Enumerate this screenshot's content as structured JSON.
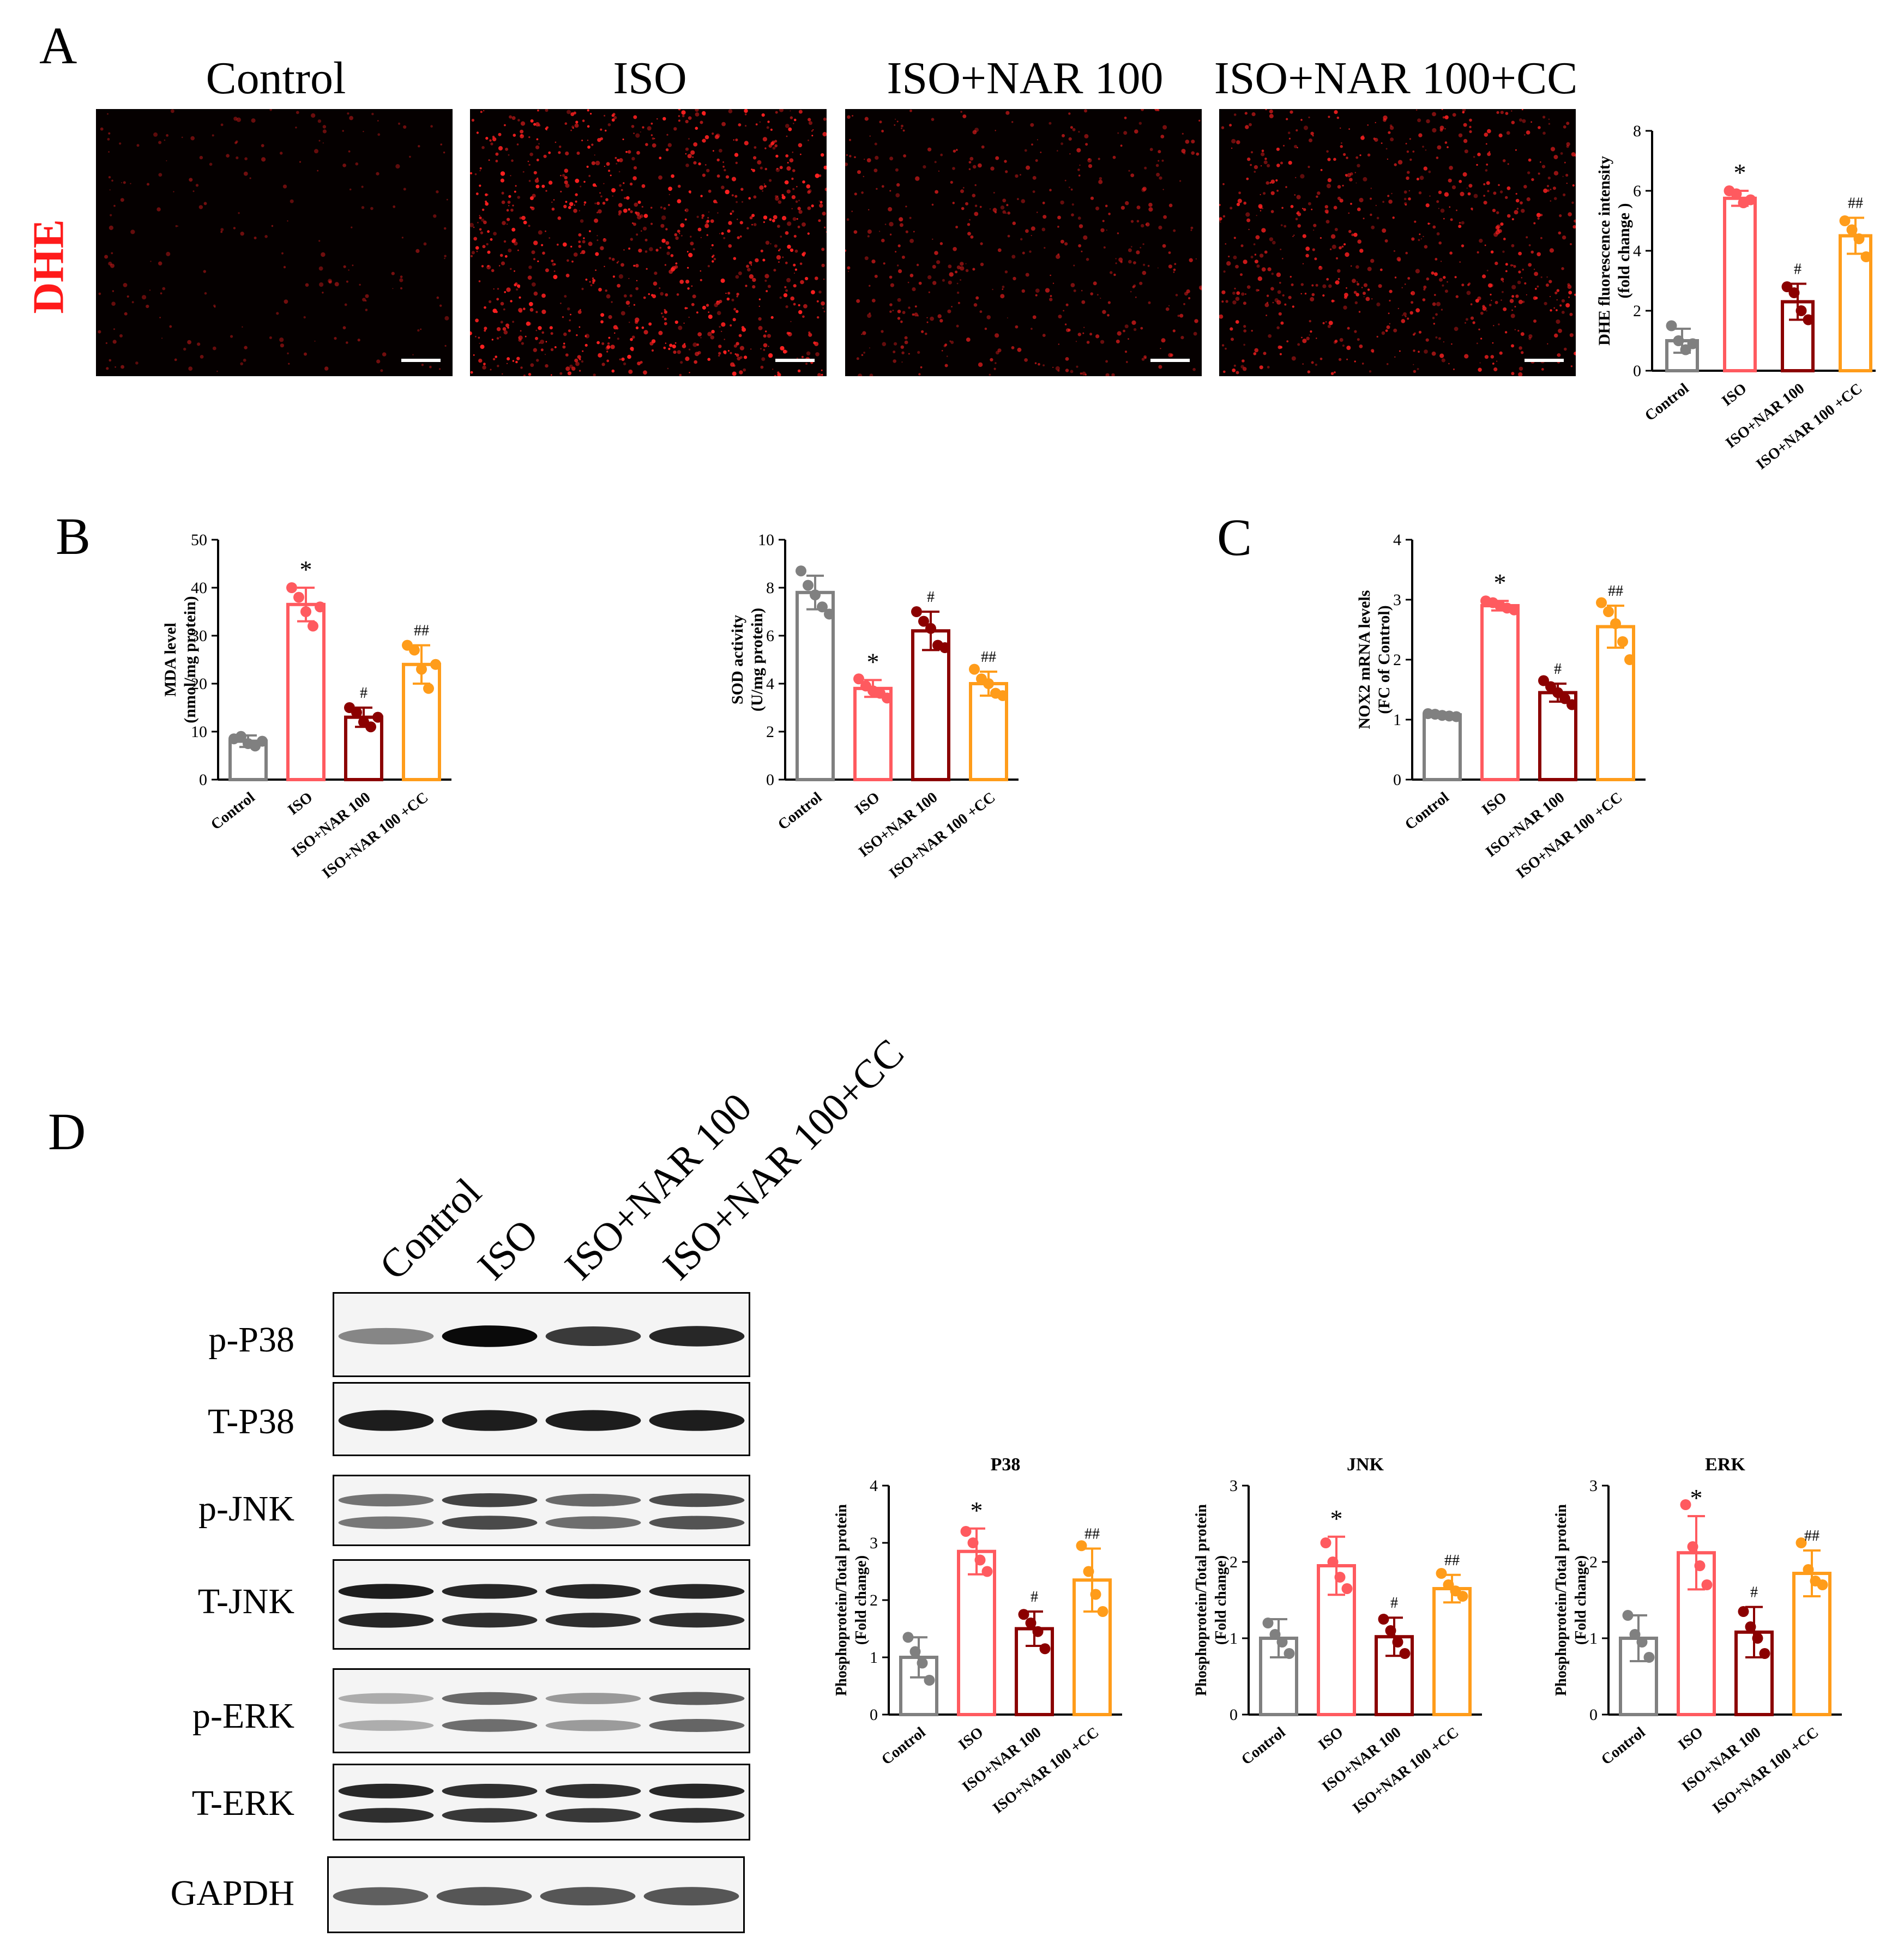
{
  "panels": {
    "A": "A",
    "B": "B",
    "C": "C",
    "D": "D"
  },
  "micrographs": {
    "row_label": "DHE",
    "titles": [
      "Control",
      "ISO",
      "ISO+NAR 100",
      "ISO+NAR 100+CC"
    ],
    "signal_density": [
      0.15,
      1.0,
      0.45,
      0.75
    ]
  },
  "colors": {
    "control": "#808080",
    "iso": "#ff5a5f",
    "nar": "#8b0000",
    "nar_cc": "#ff9c1a",
    "stain": "#ff2020"
  },
  "chart_data": [
    {
      "id": "dhe",
      "type": "bar",
      "title": "",
      "ylabel_lines": [
        "DHE fluorescence intensity",
        "(fold change )"
      ],
      "categories": [
        "Control",
        "ISO",
        "ISO+NAR 100",
        "ISO+NAR 100 +CC"
      ],
      "values": [
        1.0,
        5.75,
        2.3,
        4.5
      ],
      "errors": [
        0.4,
        0.25,
        0.6,
        0.6
      ],
      "points": [
        [
          1.5,
          1.0,
          0.7,
          0.9
        ],
        [
          6.0,
          5.9,
          5.6,
          5.7
        ],
        [
          2.8,
          2.6,
          2.0,
          1.7
        ],
        [
          5.0,
          4.7,
          4.4,
          3.8
        ]
      ],
      "annotations": [
        "",
        "*",
        "#",
        "##"
      ],
      "ylim": [
        0,
        8
      ],
      "yticks": [
        0,
        2,
        4,
        6,
        8
      ]
    },
    {
      "id": "mda",
      "type": "bar",
      "title": "",
      "ylabel_lines": [
        "MDA level",
        "(nmol/mg protein)"
      ],
      "categories": [
        "Control",
        "ISO",
        "ISO+NAR 100",
        "ISO+NAR 100 +CC"
      ],
      "values": [
        8,
        36.5,
        13,
        24
      ],
      "errors": [
        1.2,
        3.5,
        2,
        4
      ],
      "points": [
        [
          8.5,
          9,
          7.5,
          7,
          8
        ],
        [
          40,
          38,
          35,
          32,
          36
        ],
        [
          15,
          14,
          12,
          11,
          13
        ],
        [
          28,
          27,
          23,
          19,
          24
        ]
      ],
      "annotations": [
        "",
        "*",
        "#",
        "##"
      ],
      "ylim": [
        0,
        50
      ],
      "yticks": [
        0,
        10,
        20,
        30,
        40,
        50
      ]
    },
    {
      "id": "sod",
      "type": "bar",
      "title": "",
      "ylabel_lines": [
        "SOD activity",
        "(U/mg protein)"
      ],
      "categories": [
        "Control",
        "ISO",
        "ISO+NAR 100",
        "ISO+NAR 100 +CC"
      ],
      "values": [
        7.8,
        3.8,
        6.2,
        4.0
      ],
      "errors": [
        0.7,
        0.35,
        0.8,
        0.5
      ],
      "points": [
        [
          8.7,
          8.1,
          7.7,
          7.2,
          6.9
        ],
        [
          4.2,
          3.9,
          3.7,
          3.6,
          3.4
        ],
        [
          7.0,
          6.6,
          6.3,
          5.6,
          5.5
        ],
        [
          4.6,
          4.2,
          4.0,
          3.6,
          3.5
        ]
      ],
      "annotations": [
        "",
        "*",
        "#",
        "##"
      ],
      "ylim": [
        0,
        10
      ],
      "yticks": [
        0,
        2,
        4,
        6,
        8,
        10
      ]
    },
    {
      "id": "nox2",
      "type": "bar",
      "title": "",
      "ylabel_lines": [
        "NOX2  mRNA levels",
        "(FC of Control)"
      ],
      "categories": [
        "Control",
        "ISO",
        "ISO+NAR 100",
        "ISO+NAR 100 +CC"
      ],
      "values": [
        1.08,
        2.9,
        1.45,
        2.55
      ],
      "errors": [
        0.04,
        0.08,
        0.15,
        0.35
      ],
      "points": [
        [
          1.1,
          1.09,
          1.07,
          1.06,
          1.05
        ],
        [
          2.98,
          2.95,
          2.9,
          2.86,
          2.83
        ],
        [
          1.65,
          1.55,
          1.45,
          1.35,
          1.25
        ],
        [
          2.95,
          2.8,
          2.6,
          2.3,
          2.0
        ]
      ],
      "annotations": [
        "",
        "*",
        "#",
        "##"
      ],
      "ylim": [
        0,
        4
      ],
      "yticks": [
        0,
        1,
        2,
        3,
        4
      ]
    },
    {
      "id": "p38",
      "type": "bar",
      "title": "P38",
      "ylabel_lines": [
        "Phosphoprotein/Total protein",
        "(Fold change)"
      ],
      "categories": [
        "Control",
        "ISO",
        "ISO+NAR 100",
        "ISO+NAR 100 +CC"
      ],
      "values": [
        1.0,
        2.85,
        1.5,
        2.35
      ],
      "errors": [
        0.35,
        0.4,
        0.3,
        0.55
      ],
      "points": [
        [
          1.35,
          1.1,
          0.9,
          0.6
        ],
        [
          3.2,
          3.0,
          2.7,
          2.5
        ],
        [
          1.75,
          1.6,
          1.45,
          1.15
        ],
        [
          2.95,
          2.5,
          2.1,
          1.8
        ]
      ],
      "annotations": [
        "",
        "*",
        "#",
        "##"
      ],
      "ylim": [
        0,
        4
      ],
      "yticks": [
        0,
        1,
        2,
        3,
        4
      ]
    },
    {
      "id": "jnk",
      "type": "bar",
      "title": "JNK",
      "ylabel_lines": [
        "Phosphoprotein/Total protein",
        "(Fold change)"
      ],
      "categories": [
        "Control",
        "ISO",
        "ISO+NAR 100",
        "ISO+NAR 100 +CC"
      ],
      "values": [
        1.0,
        1.95,
        1.02,
        1.65
      ],
      "errors": [
        0.25,
        0.38,
        0.25,
        0.18
      ],
      "points": [
        [
          1.2,
          1.05,
          0.95,
          0.8
        ],
        [
          2.25,
          2.0,
          1.8,
          1.65
        ],
        [
          1.25,
          1.1,
          0.95,
          0.8
        ],
        [
          1.85,
          1.7,
          1.62,
          1.55
        ]
      ],
      "annotations": [
        "",
        "*",
        "#",
        "##"
      ],
      "ylim": [
        0,
        3
      ],
      "yticks": [
        0,
        1,
        2,
        3
      ]
    },
    {
      "id": "erk",
      "type": "bar",
      "title": "ERK",
      "ylabel_lines": [
        "Phosphoprotein/Total protein",
        "(Fold change)"
      ],
      "categories": [
        "Control",
        "ISO",
        "ISO+NAR 100",
        "ISO+NAR 100 +CC"
      ],
      "values": [
        1.0,
        2.12,
        1.08,
        1.85
      ],
      "errors": [
        0.3,
        0.48,
        0.33,
        0.3
      ],
      "points": [
        [
          1.3,
          1.05,
          0.95,
          0.75
        ],
        [
          2.75,
          2.2,
          1.95,
          1.7
        ],
        [
          1.35,
          1.15,
          1.0,
          0.8
        ],
        [
          2.25,
          1.9,
          1.75,
          1.7
        ]
      ],
      "annotations": [
        "",
        "*",
        "#",
        "##"
      ],
      "ylim": [
        0,
        3
      ],
      "yticks": [
        0,
        1,
        2,
        3
      ]
    }
  ],
  "western": {
    "lanes": [
      "Control",
      "ISO",
      "ISO+NAR 100",
      "ISO+NAR 100+CC"
    ],
    "blots": [
      {
        "label": "p-P38",
        "bands": 1,
        "intensity": [
          0.35,
          1.0,
          0.75,
          0.85
        ]
      },
      {
        "label": "T-P38",
        "bands": 1,
        "intensity": [
          0.9,
          0.9,
          0.9,
          0.9
        ]
      },
      {
        "label": "p-JNK",
        "bands": 2,
        "intensity": [
          0.45,
          0.7,
          0.5,
          0.65
        ]
      },
      {
        "label": "T-JNK",
        "bands": 2,
        "intensity": [
          0.9,
          0.85,
          0.85,
          0.85
        ]
      },
      {
        "label": "p-ERK",
        "bands": 2,
        "intensity": [
          0.15,
          0.5,
          0.25,
          0.55
        ]
      },
      {
        "label": "T-ERK",
        "bands": 2,
        "intensity": [
          0.85,
          0.8,
          0.8,
          0.85
        ]
      },
      {
        "label": "GAPDH",
        "bands": 1,
        "intensity": [
          0.55,
          0.6,
          0.6,
          0.6
        ]
      }
    ]
  }
}
